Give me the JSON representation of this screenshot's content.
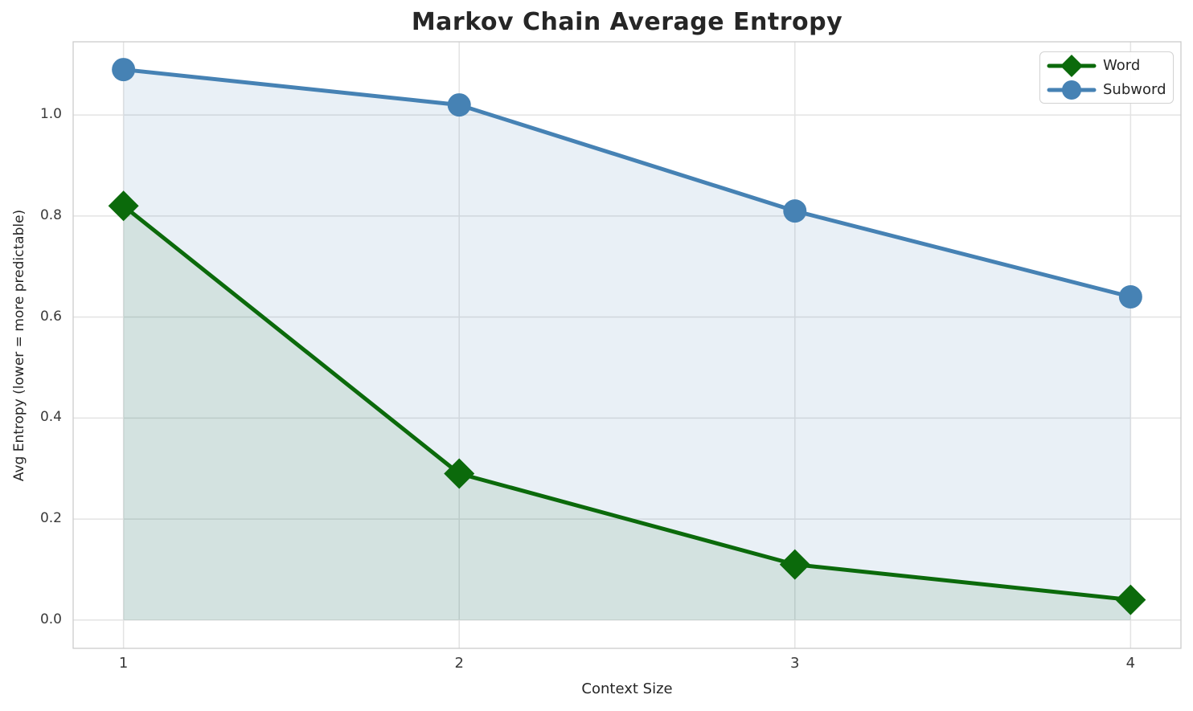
{
  "title": "Markov Chain Average Entropy",
  "colors": {
    "word": "#0b6a0b",
    "subword": "#4682b4",
    "grid": "#e3e3e3",
    "spine": "#cccccc",
    "title_text": "#262626",
    "tick_text": "#3a3a3a"
  },
  "chart_data": {
    "type": "line",
    "title": "Markov Chain Average Entropy",
    "xlabel": "Context Size",
    "ylabel": "Avg Entropy (lower = more predictable)",
    "x": [
      1,
      2,
      3,
      4
    ],
    "series": [
      {
        "name": "Word",
        "values": [
          0.82,
          0.29,
          0.11,
          0.04
        ],
        "color": "#0b6a0b",
        "marker": "diamond",
        "fill_to_zero": true,
        "fill_opacity": 0.1
      },
      {
        "name": "Subword",
        "values": [
          1.09,
          1.02,
          0.81,
          0.64
        ],
        "color": "#4682b4",
        "marker": "circle",
        "fill_to_zero": true,
        "fill_opacity": 0.12
      }
    ],
    "xlim": [
      0.85,
      4.15
    ],
    "ylim": [
      -0.056,
      1.145
    ],
    "xticks": [
      1,
      2,
      3,
      4
    ],
    "yticks": [
      0.0,
      0.2,
      0.4,
      0.6,
      0.8,
      1.0
    ],
    "grid": true,
    "legend_position": "upper right"
  }
}
